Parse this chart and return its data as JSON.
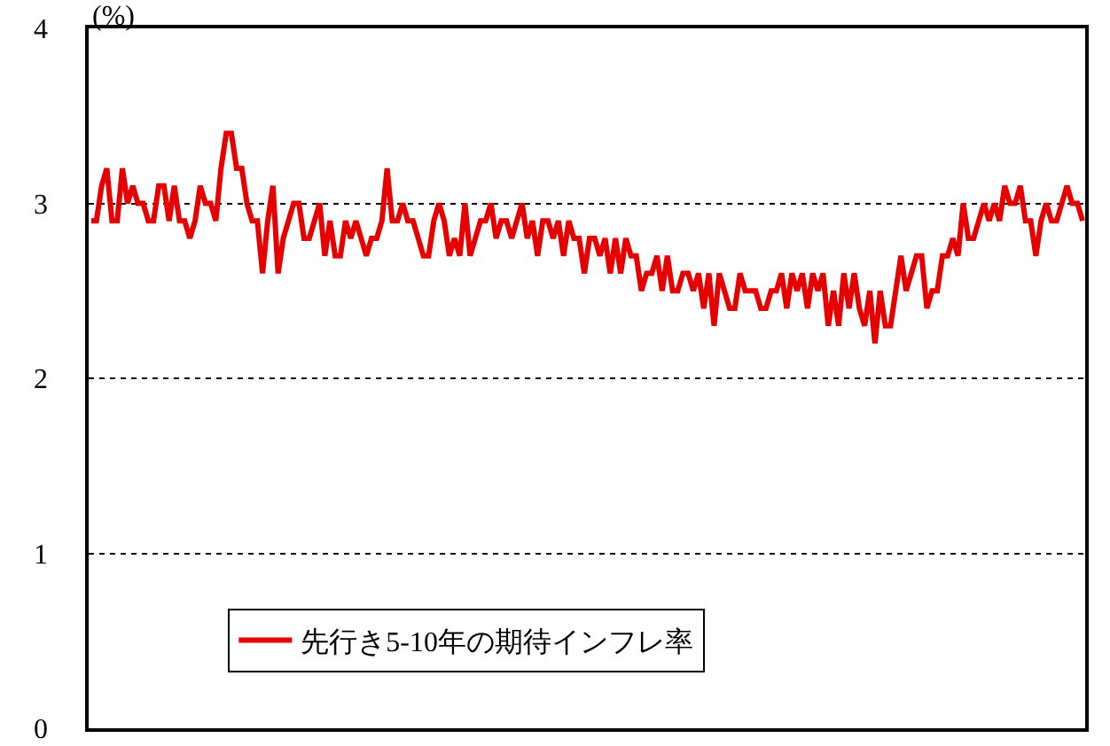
{
  "chart_data": {
    "type": "line",
    "ylabel": "(%)",
    "categories": [
      null,
      null,
      null,
      null,
      null,
      null,
      null,
      null,
      null,
      null,
      null,
      null,
      null,
      null,
      null,
      null,
      null,
      null,
      null,
      null,
      null,
      null,
      null,
      null,
      null,
      null,
      null,
      null,
      null,
      null,
      null,
      null,
      null,
      null,
      null,
      null,
      null,
      null,
      null,
      null,
      null,
      null,
      null,
      null,
      null,
      null,
      null,
      null,
      null,
      null,
      null,
      null,
      null,
      null,
      null,
      null,
      null,
      null,
      null,
      null,
      null,
      null,
      null,
      null,
      null,
      null,
      null,
      null,
      null,
      null,
      null,
      null,
      null,
      null,
      null,
      null,
      null,
      null,
      null,
      null,
      null,
      null,
      null,
      null,
      null,
      null,
      null,
      null,
      null,
      null,
      null,
      null,
      null,
      null,
      null,
      null,
      null,
      null,
      null,
      null,
      null,
      null,
      null,
      null,
      null,
      null,
      null,
      null,
      null,
      null,
      null,
      null,
      null,
      null,
      null,
      null,
      null,
      null,
      null,
      null,
      null,
      null,
      null,
      null,
      null,
      null,
      null,
      null,
      null,
      null,
      null,
      null,
      null,
      null,
      null,
      null,
      null,
      null,
      null,
      null,
      null,
      null,
      null,
      null,
      null,
      null,
      null,
      null,
      null,
      null,
      null,
      null,
      null,
      null,
      null,
      null,
      null,
      null,
      null,
      null,
      null,
      null,
      null,
      null,
      null,
      null,
      null,
      null,
      null,
      null,
      null,
      null,
      null,
      null,
      null,
      null,
      null,
      null,
      null,
      null,
      null,
      null,
      null,
      null,
      null,
      null,
      null,
      null,
      null,
      null,
      null,
      null
    ],
    "series": [
      {
        "name": "先行き5-10年の期待インフレ率",
        "color": "#e60000",
        "values": [
          2.9,
          2.9,
          3.1,
          3.2,
          2.9,
          2.9,
          3.2,
          3.0,
          3.1,
          3.0,
          3.0,
          2.9,
          2.9,
          3.1,
          3.1,
          2.9,
          3.1,
          2.9,
          2.9,
          2.8,
          2.9,
          3.1,
          3.0,
          3.0,
          2.9,
          3.2,
          3.4,
          3.4,
          3.2,
          3.2,
          3.0,
          2.9,
          2.9,
          2.6,
          2.9,
          3.1,
          2.6,
          2.8,
          2.9,
          3.0,
          3.0,
          2.8,
          2.8,
          2.9,
          3.0,
          2.7,
          2.9,
          2.7,
          2.7,
          2.9,
          2.8,
          2.9,
          2.8,
          2.7,
          2.8,
          2.8,
          2.9,
          3.2,
          2.9,
          2.9,
          3.0,
          2.9,
          2.9,
          2.8,
          2.7,
          2.7,
          2.9,
          3.0,
          2.9,
          2.7,
          2.8,
          2.7,
          3.0,
          2.7,
          2.8,
          2.9,
          2.9,
          3.0,
          2.8,
          2.9,
          2.9,
          2.8,
          2.9,
          3.0,
          2.8,
          2.9,
          2.7,
          2.9,
          2.9,
          2.8,
          2.9,
          2.7,
          2.9,
          2.8,
          2.8,
          2.6,
          2.8,
          2.8,
          2.7,
          2.8,
          2.6,
          2.8,
          2.6,
          2.8,
          2.7,
          2.7,
          2.5,
          2.6,
          2.6,
          2.7,
          2.5,
          2.7,
          2.5,
          2.5,
          2.6,
          2.6,
          2.5,
          2.6,
          2.4,
          2.6,
          2.3,
          2.6,
          2.5,
          2.4,
          2.4,
          2.6,
          2.5,
          2.5,
          2.5,
          2.4,
          2.4,
          2.5,
          2.5,
          2.6,
          2.4,
          2.6,
          2.5,
          2.6,
          2.4,
          2.6,
          2.5,
          2.6,
          2.3,
          2.5,
          2.3,
          2.6,
          2.4,
          2.6,
          2.4,
          2.3,
          2.5,
          2.2,
          2.5,
          2.3,
          2.3,
          2.5,
          2.7,
          2.5,
          2.6,
          2.7,
          2.7,
          2.4,
          2.5,
          2.5,
          2.7,
          2.7,
          2.8,
          2.7,
          3.0,
          2.8,
          2.8,
          2.9,
          3.0,
          2.9,
          3.0,
          2.9,
          3.1,
          3.0,
          3.0,
          3.1,
          2.9,
          2.9,
          2.7,
          2.9,
          3.0,
          2.9,
          2.9,
          3.0,
          3.1,
          3.0,
          3.0,
          2.9
        ]
      }
    ],
    "ylim": [
      0,
      4
    ],
    "yticks": [
      0,
      1,
      2,
      3,
      4
    ],
    "grid": "y",
    "legend": "bottom left",
    "line_style": "solid",
    "marker": "none"
  }
}
